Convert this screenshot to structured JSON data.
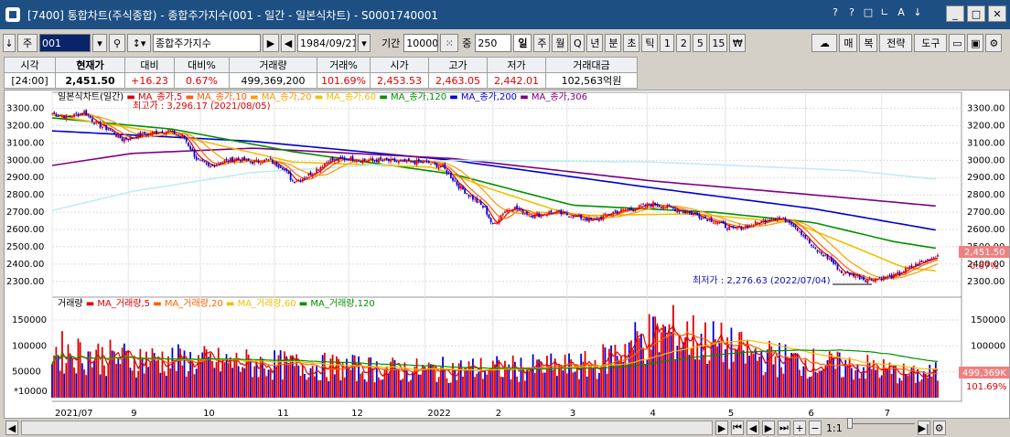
{
  "window": {
    "title": "[7400] 통합차트(주식종합) - 종합주가지수(001 - 일간 - 일본식차트) - S0001740001",
    "controls": [
      "?",
      "?",
      "□",
      "∟",
      "A",
      "↓"
    ],
    "buttons": [
      "_",
      "□",
      "✕"
    ]
  },
  "toolbar": {
    "code_type": "주",
    "code": "001",
    "name": "종합주가지수",
    "date": "1984/09/21",
    "period_label": "기간",
    "period": "10000",
    "count_label": "중",
    "count": "250",
    "intervals": [
      "일",
      "주",
      "월",
      "Q",
      "년",
      "분",
      "초",
      "틱",
      "1",
      "2",
      "5",
      "15",
      "₩"
    ],
    "active_interval": "일",
    "right_buttons": [
      "매",
      "복",
      "전략",
      "도구"
    ]
  },
  "quote": {
    "headers": [
      "시각",
      "현재가",
      "대비",
      "대비%",
      "거래량",
      "거래%",
      "시가",
      "고가",
      "저가",
      "거래대금"
    ],
    "values": [
      "[24:00]",
      "2,451.50",
      "+16.23",
      "0.67%",
      "499,369,200",
      "101.69%",
      "2,453.53",
      "2,463.05",
      "2,442.01",
      "102,563억원"
    ]
  },
  "price_legend": [
    {
      "text": "일본식차트(일간)",
      "color": "#000000"
    },
    {
      "text": "MA_종가,5",
      "color": "#e00000"
    },
    {
      "text": "MA_종가,10",
      "color": "#ff6000"
    },
    {
      "text": "MA_종가,20",
      "color": "#ff9900"
    },
    {
      "text": "MA_종가,60",
      "color": "#f0c000"
    },
    {
      "text": "MA_종가,120",
      "color": "#009000"
    },
    {
      "text": "MA_종가,200",
      "color": "#0000d0"
    },
    {
      "text": "MA_종가,306",
      "color": "#800080"
    }
  ],
  "volume_legend": [
    {
      "text": "거래량",
      "color": "#000000"
    },
    {
      "text": "MA_거래량,5",
      "color": "#e00000"
    },
    {
      "text": "MA_거래량,20",
      "color": "#ff6000"
    },
    {
      "text": "MA_거래량,60",
      "color": "#f0c000"
    },
    {
      "text": "MA_거래량,120",
      "color": "#009000"
    }
  ],
  "annotations": {
    "high": "최고가 : 3,296.17 (2021/08/05)",
    "low": "최저가 : 2,276.63 (2022/07/04)",
    "unit": "*10000"
  },
  "price_tags": {
    "price": "2,451.50",
    "change": "0.67%"
  },
  "volume_tags": {
    "volume": "499,369K",
    "ratio": "101.69%"
  },
  "bottom": {
    "zoom": "1:1"
  },
  "chart_data": {
    "type": "candlestick",
    "x_labels": [
      "2021/07",
      "9",
      "10",
      "11",
      "12",
      "2022",
      "2",
      "3",
      "4",
      "5",
      "6",
      "7"
    ],
    "x_label_days": [
      0,
      38,
      74,
      111,
      148,
      186,
      220,
      257,
      297,
      336,
      376,
      414
    ],
    "price_axis": {
      "ticks": [
        2300,
        2400,
        2500,
        2600,
        2700,
        2800,
        2900,
        3000,
        3100,
        3200,
        3300
      ],
      "range": [
        2230,
        3340
      ]
    },
    "volume_axis": {
      "ticks": [
        50000,
        100000,
        150000
      ],
      "range": [
        0,
        180000
      ]
    },
    "close_anchors": [
      [
        0,
        3270
      ],
      [
        8,
        3250
      ],
      [
        16,
        3280
      ],
      [
        22,
        3210
      ],
      [
        28,
        3180
      ],
      [
        35,
        3120
      ],
      [
        42,
        3140
      ],
      [
        50,
        3160
      ],
      [
        58,
        3170
      ],
      [
        66,
        3130
      ],
      [
        72,
        3010
      ],
      [
        78,
        2960
      ],
      [
        84,
        2990
      ],
      [
        92,
        3010
      ],
      [
        100,
        2990
      ],
      [
        108,
        3000
      ],
      [
        115,
        2960
      ],
      [
        120,
        2880
      ],
      [
        124,
        2890
      ],
      [
        130,
        2930
      ],
      [
        138,
        3000
      ],
      [
        148,
        3010
      ],
      [
        155,
        3000
      ],
      [
        165,
        3000
      ],
      [
        175,
        2990
      ],
      [
        186,
        2990
      ],
      [
        195,
        2960
      ],
      [
        203,
        2850
      ],
      [
        210,
        2780
      ],
      [
        216,
        2720
      ],
      [
        220,
        2620
      ],
      [
        225,
        2700
      ],
      [
        230,
        2730
      ],
      [
        240,
        2680
      ],
      [
        250,
        2700
      ],
      [
        260,
        2680
      ],
      [
        270,
        2650
      ],
      [
        280,
        2700
      ],
      [
        290,
        2720
      ],
      [
        300,
        2750
      ],
      [
        310,
        2720
      ],
      [
        320,
        2690
      ],
      [
        330,
        2650
      ],
      [
        340,
        2600
      ],
      [
        350,
        2630
      ],
      [
        360,
        2670
      ],
      [
        368,
        2650
      ],
      [
        374,
        2580
      ],
      [
        380,
        2490
      ],
      [
        388,
        2430
      ],
      [
        394,
        2350
      ],
      [
        400,
        2340
      ],
      [
        406,
        2310
      ],
      [
        414,
        2320
      ],
      [
        420,
        2330
      ],
      [
        428,
        2380
      ],
      [
        436,
        2420
      ],
      [
        442,
        2451.5
      ]
    ],
    "ma": [
      {
        "name": "MA_종가,200",
        "anchors": [
          [
            0,
            3170
          ],
          [
            100,
            3110
          ],
          [
            200,
            3000
          ],
          [
            300,
            2840
          ],
          [
            380,
            2720
          ],
          [
            442,
            2595
          ]
        ]
      },
      {
        "name": "MA_종가,306",
        "anchors": [
          [
            0,
            2970
          ],
          [
            40,
            3040
          ],
          [
            100,
            3070
          ],
          [
            200,
            3010
          ],
          [
            300,
            2880
          ],
          [
            380,
            2800
          ],
          [
            442,
            2735
          ]
        ]
      },
      {
        "name": "MA_종가,120",
        "anchors": [
          [
            0,
            3245
          ],
          [
            60,
            3180
          ],
          [
            120,
            3050
          ],
          [
            200,
            2920
          ],
          [
            260,
            2740
          ],
          [
            330,
            2700
          ],
          [
            380,
            2640
          ],
          [
            420,
            2530
          ],
          [
            442,
            2490
          ]
        ]
      },
      {
        "name": "MA_종가,60",
        "anchors": [
          [
            0,
            3260
          ],
          [
            60,
            3150
          ],
          [
            120,
            2990
          ],
          [
            190,
            2960
          ],
          [
            220,
            2830
          ],
          [
            260,
            2680
          ],
          [
            320,
            2690
          ],
          [
            370,
            2640
          ],
          [
            400,
            2500
          ],
          [
            425,
            2380
          ],
          [
            442,
            2360
          ]
        ]
      },
      {
        "name": "ma_extra_cyan",
        "anchors": [
          [
            0,
            2710
          ],
          [
            40,
            2820
          ],
          [
            100,
            2930
          ],
          [
            200,
            3000
          ],
          [
            300,
            2990
          ],
          [
            400,
            2940
          ],
          [
            442,
            2890
          ]
        ]
      }
    ],
    "volume_anchors": [
      [
        0,
        95000
      ],
      [
        30,
        80000
      ],
      [
        60,
        75000
      ],
      [
        90,
        70000
      ],
      [
        120,
        65000
      ],
      [
        150,
        60000
      ],
      [
        180,
        55000
      ],
      [
        210,
        58000
      ],
      [
        240,
        60000
      ],
      [
        270,
        65000
      ],
      [
        295,
        120000
      ],
      [
        310,
        130000
      ],
      [
        330,
        110000
      ],
      [
        350,
        85000
      ],
      [
        370,
        75000
      ],
      [
        390,
        65000
      ],
      [
        410,
        60000
      ],
      [
        430,
        45000
      ],
      [
        442,
        50000
      ]
    ]
  }
}
